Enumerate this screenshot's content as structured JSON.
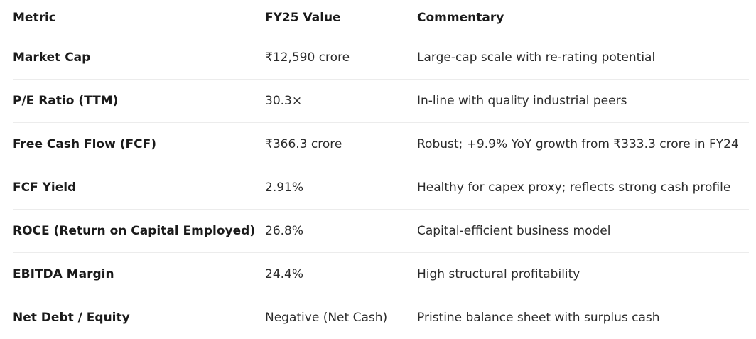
{
  "table": {
    "headers": [
      "Metric",
      "FY25 Value",
      "Commentary"
    ],
    "rows": [
      {
        "metric": "Market Cap",
        "value": "₹12,590 crore",
        "commentary": "Large-cap scale with re-rating potential"
      },
      {
        "metric": "P/E Ratio (TTM)",
        "value": "30.3×",
        "commentary": "In-line with quality industrial peers"
      },
      {
        "metric": "Free Cash Flow (FCF)",
        "value": "₹366.3 crore",
        "commentary": "Robust; +9.9% YoY growth from ₹333.3 crore in FY24"
      },
      {
        "metric": "FCF Yield",
        "value": "2.91%",
        "commentary": "Healthy for capex proxy; reflects strong cash profile"
      },
      {
        "metric": "ROCE (Return on Capital Employed)",
        "value": "26.8%",
        "commentary": "Capital-efficient business model"
      },
      {
        "metric": "EBITDA Margin",
        "value": "24.4%",
        "commentary": "High structural profitability"
      },
      {
        "metric": "Net Debt / Equity",
        "value": "Negative (Net Cash)",
        "commentary": "Pristine balance sheet with surplus cash"
      }
    ]
  }
}
